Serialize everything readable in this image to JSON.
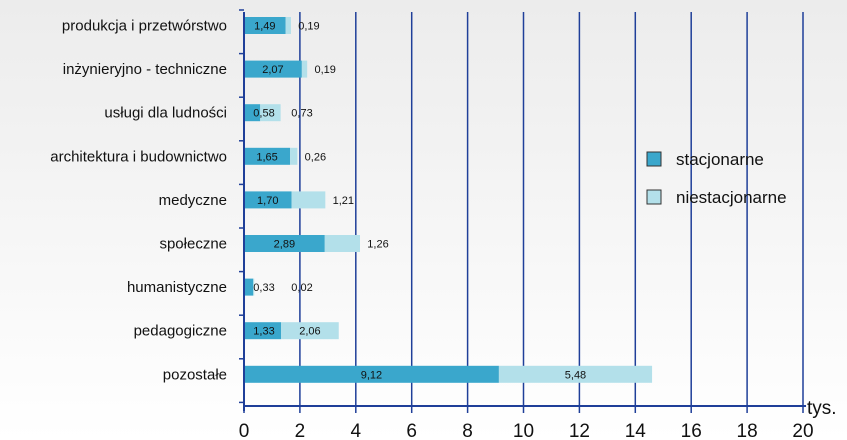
{
  "chart_data": {
    "type": "bar",
    "stacked": true,
    "orientation": "horizontal",
    "categories": [
      "produkcja i przetwórstwo",
      "inżynieryjno - techniczne",
      "usługi dla ludności",
      "architektura i budownictwo",
      "medyczne",
      "społeczne",
      "humanistyczne",
      "pedagogiczne",
      "pozostałe"
    ],
    "series": [
      {
        "name": "stacjonarne",
        "color": "#3aa7cc",
        "values": [
          1.49,
          2.07,
          0.58,
          1.65,
          1.7,
          2.89,
          0.33,
          1.33,
          9.12
        ],
        "labels": [
          "1,49",
          "2,07",
          "0,58",
          "1,65",
          "1,70",
          "2,89",
          "0,33",
          "1,33",
          "9,12"
        ]
      },
      {
        "name": "niestacjonarne",
        "color": "#b3e0ea",
        "values": [
          0.19,
          0.19,
          0.73,
          0.26,
          1.21,
          1.26,
          0.02,
          2.06,
          5.48
        ],
        "labels": [
          "0,19",
          "0,19",
          "0,73",
          "0,26",
          "1,21",
          "1,26",
          "0,02",
          "2,06",
          "5,48"
        ]
      }
    ],
    "xlim": [
      0,
      20
    ],
    "xticks": [
      0,
      2,
      4,
      6,
      8,
      10,
      12,
      14,
      16,
      18,
      20
    ],
    "xlabel": "tys.",
    "grid": "vertical",
    "legend_position": "right",
    "grid_color": "#1f3f99"
  }
}
